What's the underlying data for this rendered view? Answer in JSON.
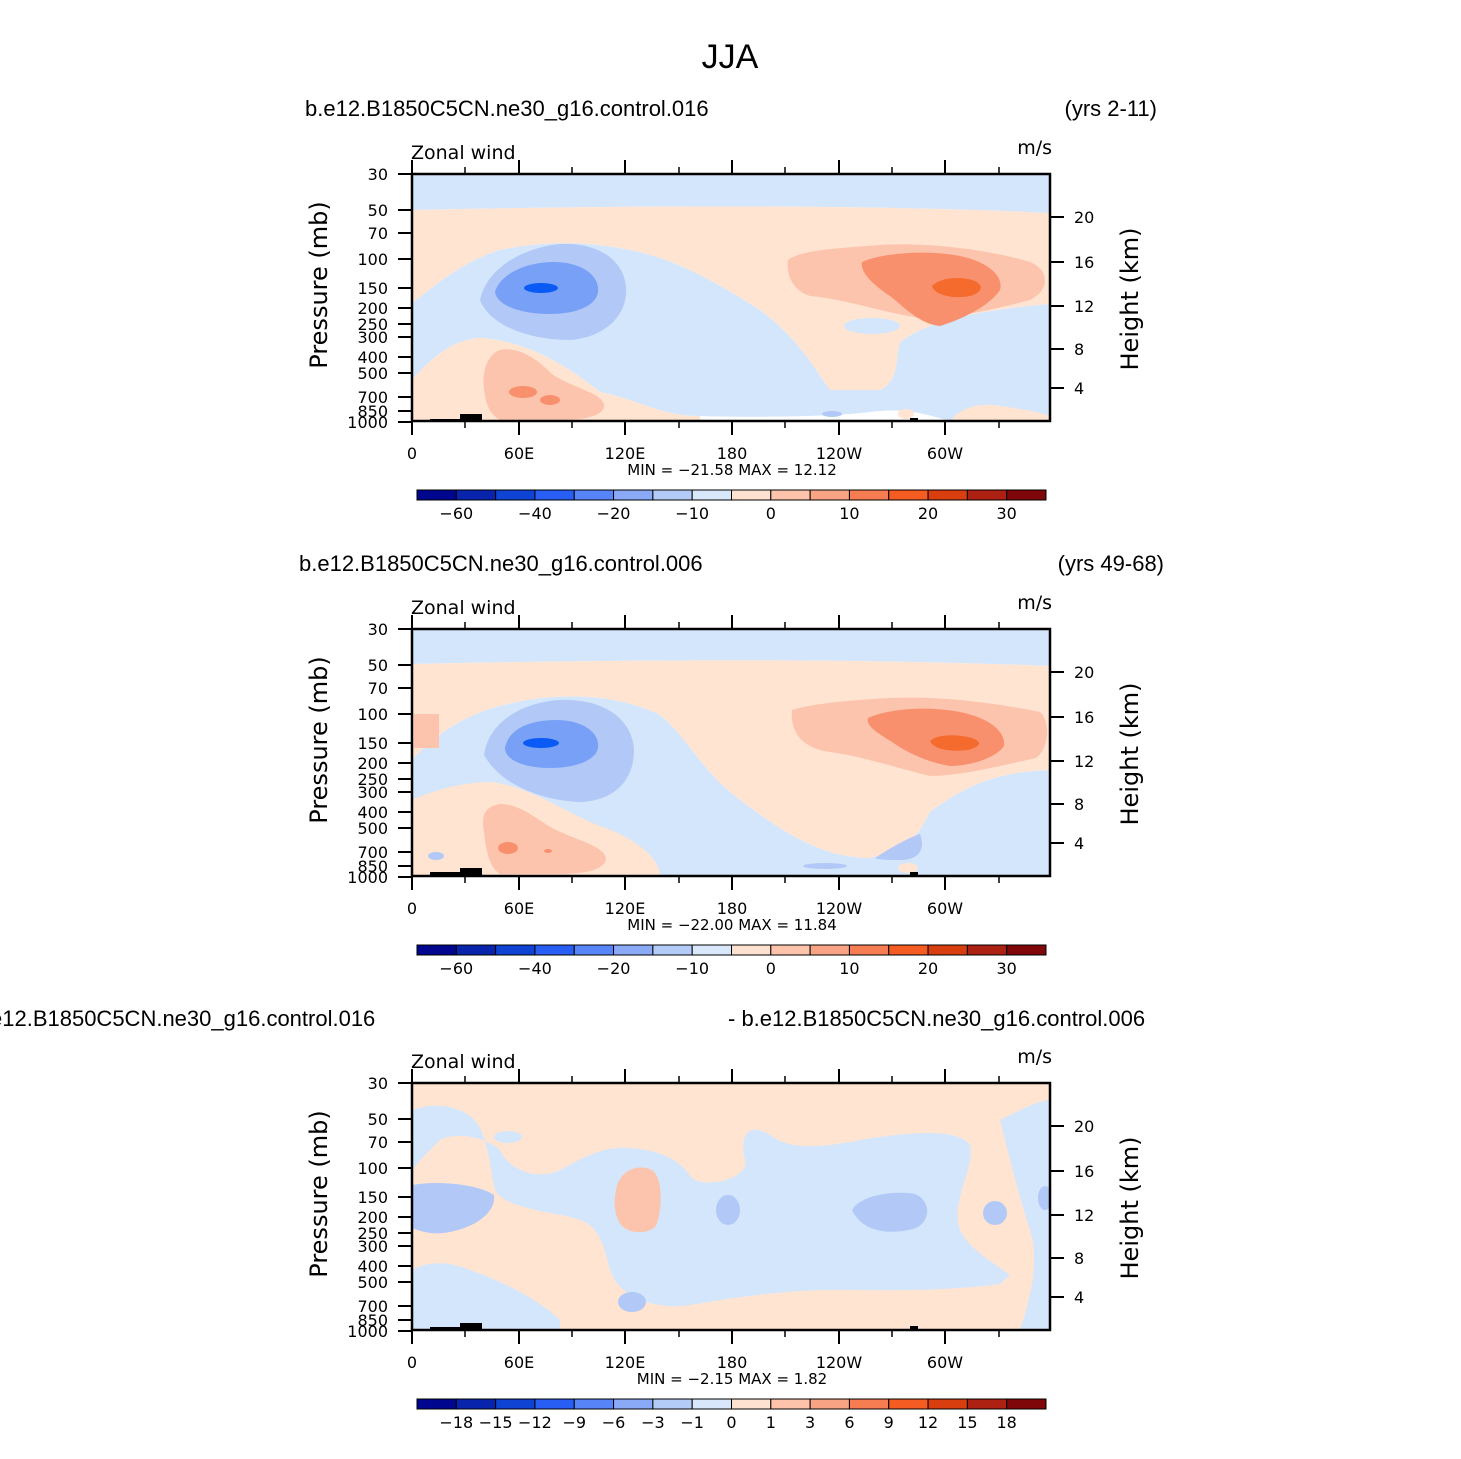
{
  "figure_title": "JJA",
  "chart_data": [
    {
      "type": "heatmap",
      "case_label": "b.e12.B1850C5CN.ne30_g16.control.016",
      "years_label": "(yrs 2-11)",
      "variable_label": "Zonal  wind",
      "units_label": "m/s",
      "ylabel": "Pressure  (mb)",
      "y2label": "Height  (km)",
      "x_ticks": [
        "0",
        "60E",
        "120E",
        "180",
        "120W",
        "60W"
      ],
      "y_ticks": [
        "30",
        "50",
        "70",
        "100",
        "150",
        "200",
        "250",
        "300",
        "400",
        "500",
        "700",
        "850",
        "1000"
      ],
      "y2_ticks": [
        "20",
        "16",
        "12",
        "8",
        "4"
      ],
      "min_max_text": "MIN =  −21.58   MAX =    12.12",
      "min": -21.58,
      "max": 12.12,
      "colorbar_levels": [
        "−60",
        "−40",
        "−20",
        "−10",
        "0",
        "10",
        "20",
        "30"
      ],
      "features": [
        {
          "name": "upper-easterly-band",
          "lon": [
            0,
            360
          ],
          "p": [
            30,
            50
          ],
          "value": -2
        },
        {
          "name": "stratospheric-westerly-band",
          "lon": [
            0,
            360
          ],
          "p": [
            50,
            90
          ],
          "value": 2
        },
        {
          "name": "tropical-easterly-jet",
          "lon": 70,
          "p": 150,
          "value": -21.58
        },
        {
          "name": "west-pacific-easterlies",
          "lon": 110,
          "p": 200,
          "value": -8
        },
        {
          "name": "subtropical-westerly-max",
          "lon": 300,
          "p": 140,
          "value": 12.12
        },
        {
          "name": "african-low-level-westerly",
          "lon": 60,
          "p": 700,
          "value": 6
        },
        {
          "name": "east-pacific-lower-westerlies",
          "lon": 240,
          "p": 500,
          "value": 2
        }
      ]
    },
    {
      "type": "heatmap",
      "case_label": "b.e12.B1850C5CN.ne30_g16.control.006",
      "years_label": "(yrs 49-68)",
      "variable_label": "Zonal  wind",
      "units_label": "m/s",
      "ylabel": "Pressure  (mb)",
      "y2label": "Height  (km)",
      "x_ticks": [
        "0",
        "60E",
        "120E",
        "180",
        "120W",
        "60W"
      ],
      "y_ticks": [
        "30",
        "50",
        "70",
        "100",
        "150",
        "200",
        "250",
        "300",
        "400",
        "500",
        "700",
        "850",
        "1000"
      ],
      "y2_ticks": [
        "20",
        "16",
        "12",
        "8",
        "4"
      ],
      "min_max_text": "MIN =  −22.00   MAX =    11.84",
      "min": -22.0,
      "max": 11.84,
      "colorbar_levels": [
        "−60",
        "−40",
        "−20",
        "−10",
        "0",
        "10",
        "20",
        "30"
      ],
      "features": [
        {
          "name": "upper-easterly-band",
          "lon": [
            0,
            360
          ],
          "p": [
            30,
            50
          ],
          "value": -2
        },
        {
          "name": "stratospheric-westerly-band",
          "lon": [
            0,
            360
          ],
          "p": [
            50,
            90
          ],
          "value": 2
        },
        {
          "name": "tropical-easterly-jet",
          "lon": 72,
          "p": 150,
          "value": -22.0
        },
        {
          "name": "west-pacific-easterlies",
          "lon": 115,
          "p": 200,
          "value": -8
        },
        {
          "name": "subtropical-westerly-max",
          "lon": 303,
          "p": 150,
          "value": 11.84
        },
        {
          "name": "african-low-level-westerly",
          "lon": 62,
          "p": 700,
          "value": 6
        },
        {
          "name": "east-pacific-lower-westerlies",
          "lon": 240,
          "p": 500,
          "value": 2
        }
      ]
    },
    {
      "type": "heatmap",
      "case_label": "e12.B1850C5CN.ne30_g16.control.016",
      "years_label": "- b.e12.B1850C5CN.ne30_g16.control.006",
      "variable_label": "Zonal  wind",
      "units_label": "m/s",
      "ylabel": "Pressure  (mb)",
      "y2label": "Height  (km)",
      "x_ticks": [
        "0",
        "60E",
        "120E",
        "180",
        "120W",
        "60W"
      ],
      "y_ticks": [
        "30",
        "50",
        "70",
        "100",
        "150",
        "200",
        "250",
        "300",
        "400",
        "500",
        "700",
        "850",
        "1000"
      ],
      "y2_ticks": [
        "20",
        "16",
        "12",
        "8",
        "4"
      ],
      "min_max_text": "MIN =    −2.15   MAX =     1.82",
      "min": -2.15,
      "max": 1.82,
      "colorbar_levels": [
        "−18",
        "−15",
        "−12",
        "−9",
        "−6",
        "−3",
        "−1",
        "0",
        "1",
        "3",
        "6",
        "9",
        "12",
        "15",
        "18"
      ],
      "features": [
        {
          "name": "difference-max",
          "lon": 123,
          "p": 170,
          "value": 1.82
        },
        {
          "name": "difference-min",
          "lon": 260,
          "p": 180,
          "value": -2.15
        }
      ]
    }
  ]
}
